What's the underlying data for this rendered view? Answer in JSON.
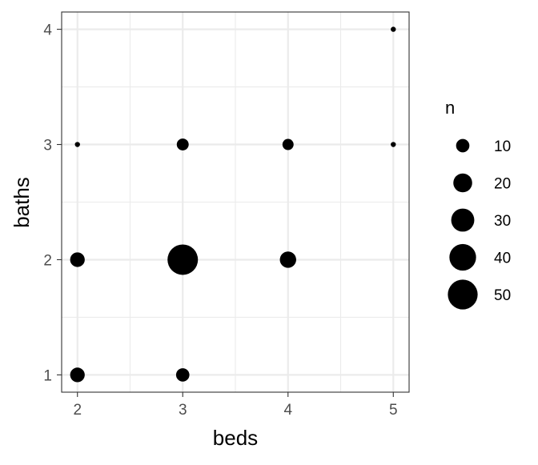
{
  "chart_data": {
    "type": "scatter",
    "title": "",
    "xlabel": "beds",
    "ylabel": "baths",
    "xlim": [
      1.85,
      5.15
    ],
    "ylim": [
      0.85,
      4.15
    ],
    "x_ticks": [
      2,
      3,
      4,
      5
    ],
    "y_ticks": [
      1,
      2,
      3,
      4
    ],
    "grid": true,
    "size_variable": "n",
    "points": [
      {
        "beds": 2,
        "baths": 1,
        "n": 12
      },
      {
        "beds": 3,
        "baths": 1,
        "n": 10
      },
      {
        "beds": 2,
        "baths": 2,
        "n": 12
      },
      {
        "beds": 3,
        "baths": 2,
        "n": 52
      },
      {
        "beds": 4,
        "baths": 2,
        "n": 15
      },
      {
        "beds": 2,
        "baths": 3,
        "n": 1
      },
      {
        "beds": 3,
        "baths": 3,
        "n": 8
      },
      {
        "beds": 4,
        "baths": 3,
        "n": 7
      },
      {
        "beds": 5,
        "baths": 3,
        "n": 1
      },
      {
        "beds": 5,
        "baths": 4,
        "n": 1
      }
    ],
    "legend": {
      "title": "n",
      "position": "right",
      "values": [
        10,
        20,
        30,
        40,
        50
      ]
    },
    "point_color": "#000000",
    "grid_color": "#ebebeb",
    "panel_border_color": "#333333"
  }
}
